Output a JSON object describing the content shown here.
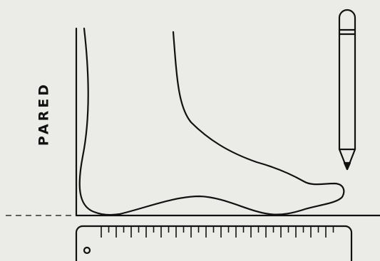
{
  "label": "PARED"
}
